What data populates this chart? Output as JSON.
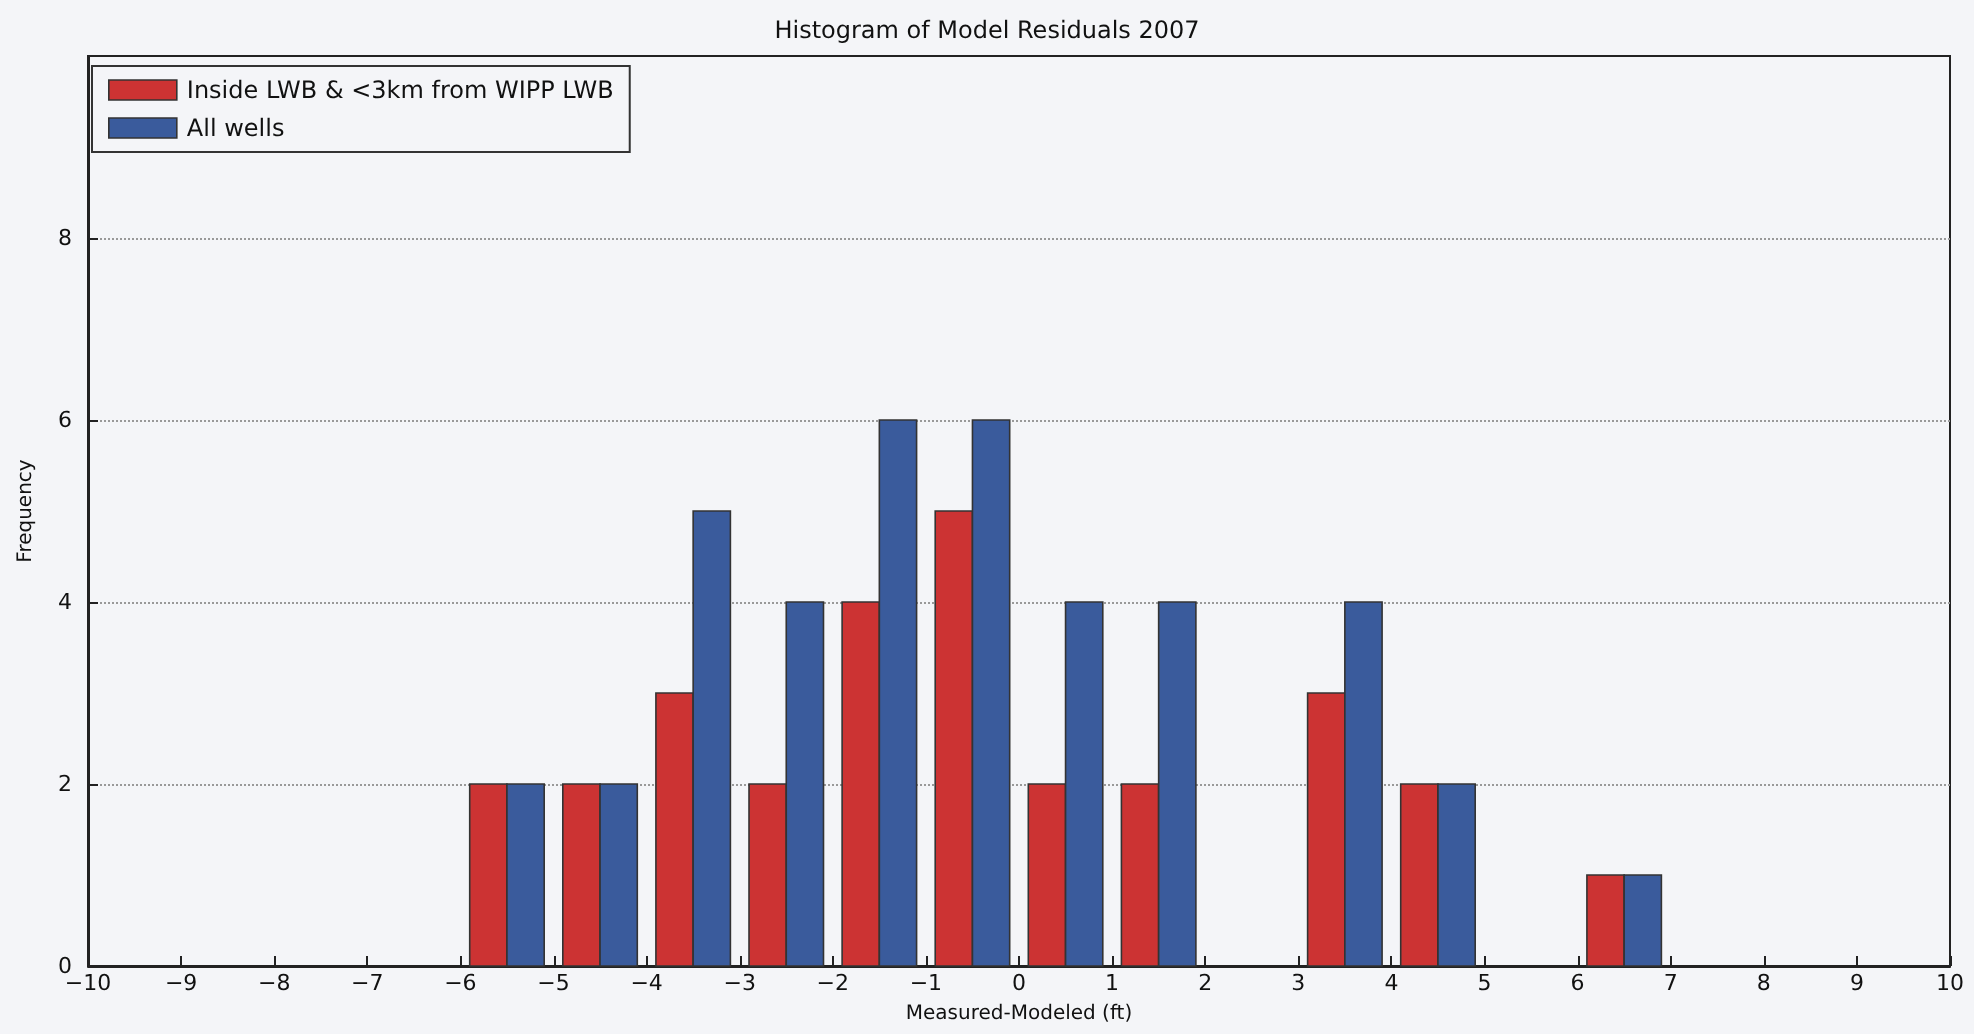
{
  "chart_data": {
    "type": "histogram",
    "title": "Histogram of Model Residuals 2007",
    "xlabel": "Measured-Modeled (ft)",
    "ylabel": "Frequency",
    "bins": [
      -6,
      -5,
      -4,
      -3,
      -2,
      -1,
      0,
      1,
      2,
      3,
      4,
      5,
      6,
      7
    ],
    "series": [
      {
        "name": "Inside LWB & <3km from WIPP LWB",
        "color": "#cc3333",
        "values": [
          2,
          2,
          3,
          2,
          4,
          5,
          2,
          2,
          0,
          3,
          2,
          0,
          1
        ]
      },
      {
        "name": "All wells",
        "color": "#3a5b9c",
        "values": [
          2,
          2,
          5,
          4,
          6,
          6,
          4,
          4,
          0,
          4,
          2,
          0,
          1
        ]
      }
    ],
    "xlim": [
      -10,
      10
    ],
    "xticks": [
      -10,
      -9,
      -8,
      -7,
      -6,
      -5,
      -4,
      -3,
      -2,
      -1,
      0,
      1,
      2,
      3,
      4,
      5,
      6,
      7,
      8,
      9,
      10
    ],
    "ylim": [
      0,
      10
    ],
    "yticks": [
      0,
      2,
      4,
      6,
      8
    ],
    "grid": "y",
    "legend": "top left"
  }
}
